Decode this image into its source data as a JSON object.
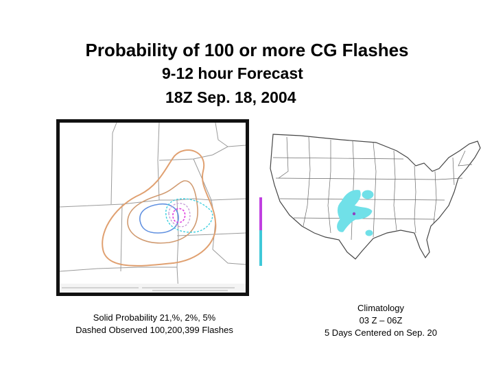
{
  "slide": {
    "title_line1": "Probability of 100 or more CG Flashes",
    "title_line2": "9-12 hour Forecast",
    "title_line3": "18Z Sep. 18, 2004"
  },
  "left_panel": {
    "caption_line1": "Solid Probability 21,%, 2%, 5%",
    "caption_line2": "Dashed Observed 100,200,399 Flashes",
    "contour_colors": {
      "outer": "#e0a070",
      "middle": "#c8a0d8",
      "inner": "#6090e0",
      "observed": "#40d0e0",
      "observed_high": "#e040e0"
    }
  },
  "right_panel": {
    "caption_line1": "Climatology",
    "caption_line2": "03 Z – 06Z",
    "caption_line3": "5 Days Centered on Sep. 20",
    "shading_color": "#70e0e8"
  }
}
